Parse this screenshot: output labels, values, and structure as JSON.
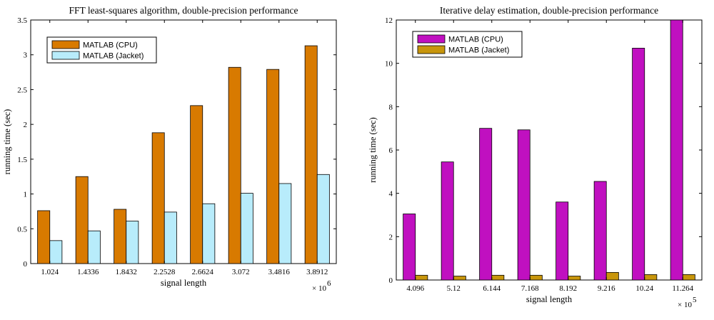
{
  "colors": {
    "orange": "#d87a00",
    "light_blue": "#b8ecfb",
    "magenta": "#c010c0",
    "gold": "#c8960c"
  },
  "chart_data": [
    {
      "type": "bar",
      "title": "FFT least-squares algorithm, double-precision performance",
      "xlabel": "signal length",
      "ylabel": "running time (sec)",
      "x_exponent_label": "× 10",
      "x_exponent": "6",
      "categories": [
        "1.024",
        "1.4336",
        "1.8432",
        "2.2528",
        "2.6624",
        "3.072",
        "3.4816",
        "3.8912"
      ],
      "ylim": [
        0,
        3.5
      ],
      "yticks": [
        "0",
        "0.5",
        "1",
        "1.5",
        "2",
        "2.5",
        "3",
        "3.5"
      ],
      "legend_position": "top-left",
      "series": [
        {
          "name": "MATLAB (CPU)",
          "color": "#d87a00",
          "values": [
            0.76,
            1.25,
            0.78,
            1.88,
            2.27,
            2.82,
            2.79,
            3.13
          ]
        },
        {
          "name": "MATLAB (Jacket)",
          "color": "#b8ecfb",
          "values": [
            0.33,
            0.47,
            0.61,
            0.74,
            0.86,
            1.01,
            1.15,
            1.28
          ]
        }
      ]
    },
    {
      "type": "bar",
      "title": "Iterative delay estimation, double-precision performance",
      "xlabel": "signal length",
      "ylabel": "running time (sec)",
      "x_exponent_label": "× 10",
      "x_exponent": "5",
      "categories": [
        "4.096",
        "5.12",
        "6.144",
        "7.168",
        "8.192",
        "9.216",
        "10.24",
        "11.264"
      ],
      "ylim": [
        0,
        12
      ],
      "yticks": [
        "0",
        "2",
        "4",
        "6",
        "8",
        "10",
        "12"
      ],
      "legend_position": "top-left",
      "series": [
        {
          "name": "MATLAB (CPU)",
          "color": "#c010c0",
          "values": [
            3.05,
            5.45,
            7.0,
            6.93,
            3.6,
            4.55,
            10.7,
            12.0
          ]
        },
        {
          "name": "MATLAB (Jacket)",
          "color": "#c8960c",
          "values": [
            0.22,
            0.18,
            0.22,
            0.22,
            0.18,
            0.35,
            0.25,
            0.25
          ]
        }
      ]
    }
  ]
}
